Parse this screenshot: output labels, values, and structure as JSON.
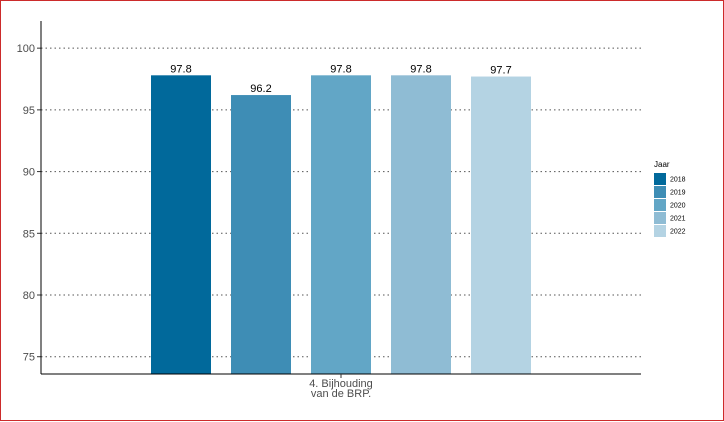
{
  "chart_data": {
    "type": "bar",
    "title": "",
    "xlabel": "",
    "ylabel": "",
    "categories": [
      "4. Bijhouding van de BRP."
    ],
    "category_lines": [
      "4. Bijhouding",
      "van de BRP."
    ],
    "series": [
      {
        "name": "2018",
        "values": [
          97.8
        ],
        "label": "97.8",
        "color": "#01699b"
      },
      {
        "name": "2019",
        "values": [
          96.2
        ],
        "label": "96.2",
        "color": "#3e8db5"
      },
      {
        "name": "2020",
        "values": [
          97.8
        ],
        "label": "97.8",
        "color": "#62a6c6"
      },
      {
        "name": "2021",
        "values": [
          97.8
        ],
        "label": "97.8",
        "color": "#8fbcd4"
      },
      {
        "name": "2022",
        "values": [
          97.7
        ],
        "label": "97.7",
        "color": "#b4d3e3"
      }
    ],
    "ylim": [
      73.6,
      102.2
    ],
    "yticks": [
      75,
      80,
      85,
      90,
      95,
      100
    ],
    "ytick_labels": [
      "75",
      "80",
      "85",
      "90",
      "95",
      "100"
    ],
    "grid": "horizontal dotted",
    "legend": {
      "title": "Jaar",
      "placement": "right"
    }
  }
}
